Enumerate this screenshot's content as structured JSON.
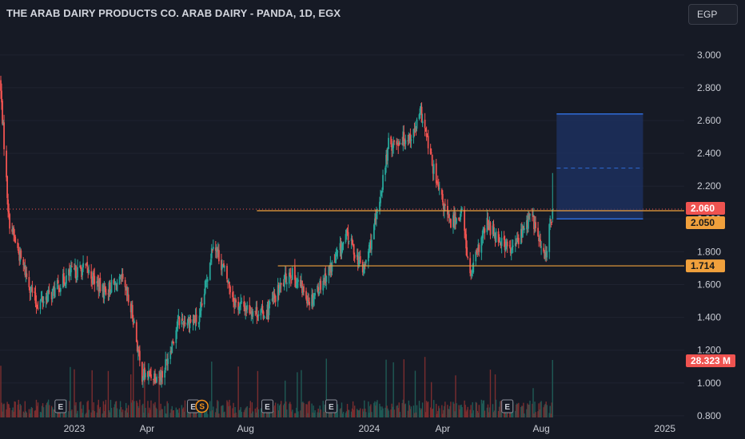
{
  "header": {
    "title": "THE ARAB DAIRY PRODUCTS CO. ARAB DAIRY - PANDA, 1D, EGX",
    "currency_button": "EGP"
  },
  "colors": {
    "up": "#26a69a",
    "down": "#ef5350",
    "level": "#f0a03c",
    "target_zone": "#1e3366",
    "target_border": "#2f6bd6",
    "background": "#161a25"
  },
  "chart_data": {
    "type": "candlestick",
    "symbol": "ARAB DAIRY - PANDA",
    "exchange": "EGX",
    "interval": "1D",
    "currency": "EGP",
    "ylim": [
      0.78,
      3.15
    ],
    "y_ticks": [
      "3.000",
      "2.800",
      "2.600",
      "2.400",
      "2.200",
      "2.000",
      "1.800",
      "1.600",
      "1.400",
      "1.200",
      "1.000",
      "0.800"
    ],
    "x_range": [
      "2022-10-01",
      "2025-01-25"
    ],
    "x_ticks": [
      {
        "label": "2023",
        "date": "2023-01-01"
      },
      {
        "label": "Apr",
        "date": "2023-04-01"
      },
      {
        "label": "Aug",
        "date": "2023-08-01"
      },
      {
        "label": "2024",
        "date": "2024-01-01"
      },
      {
        "label": "Apr",
        "date": "2024-04-01"
      },
      {
        "label": "Aug",
        "date": "2024-08-01"
      },
      {
        "label": "2025",
        "date": "2025-01-01"
      }
    ],
    "price_path": [
      {
        "date": "2022-10-01",
        "price": 2.85
      },
      {
        "date": "2022-10-12",
        "price": 2.0
      },
      {
        "date": "2022-10-25",
        "price": 1.78
      },
      {
        "date": "2022-11-15",
        "price": 1.48
      },
      {
        "date": "2022-12-05",
        "price": 1.55
      },
      {
        "date": "2022-12-25",
        "price": 1.66
      },
      {
        "date": "2023-01-15",
        "price": 1.7
      },
      {
        "date": "2023-02-05",
        "price": 1.56
      },
      {
        "date": "2023-03-01",
        "price": 1.62
      },
      {
        "date": "2023-03-15",
        "price": 1.4
      },
      {
        "date": "2023-03-25",
        "price": 1.05
      },
      {
        "date": "2023-04-20",
        "price": 1.05
      },
      {
        "date": "2023-05-10",
        "price": 1.38
      },
      {
        "date": "2023-06-05",
        "price": 1.38
      },
      {
        "date": "2023-06-22",
        "price": 1.87
      },
      {
        "date": "2023-07-20",
        "price": 1.48
      },
      {
        "date": "2023-08-25",
        "price": 1.42
      },
      {
        "date": "2023-09-25",
        "price": 1.68
      },
      {
        "date": "2023-10-20",
        "price": 1.5
      },
      {
        "date": "2023-11-20",
        "price": 1.75
      },
      {
        "date": "2023-12-05",
        "price": 1.9
      },
      {
        "date": "2023-12-25",
        "price": 1.68
      },
      {
        "date": "2024-01-10",
        "price": 2.0
      },
      {
        "date": "2024-01-25",
        "price": 2.45
      },
      {
        "date": "2024-02-25",
        "price": 2.52
      },
      {
        "date": "2024-03-05",
        "price": 2.65
      },
      {
        "date": "2024-03-25",
        "price": 2.2
      },
      {
        "date": "2024-04-10",
        "price": 1.97
      },
      {
        "date": "2024-04-25",
        "price": 2.04
      },
      {
        "date": "2024-05-05",
        "price": 1.64
      },
      {
        "date": "2024-05-25",
        "price": 1.97
      },
      {
        "date": "2024-06-25",
        "price": 1.8
      },
      {
        "date": "2024-07-20",
        "price": 2.03
      },
      {
        "date": "2024-08-05",
        "price": 1.75
      },
      {
        "date": "2024-08-15",
        "price": 2.05
      }
    ],
    "horizontal_levels": [
      {
        "price": 2.05,
        "start_date": "2023-08-15",
        "label": "2.050"
      },
      {
        "price": 1.714,
        "start_date": "2023-09-10",
        "label": "1.714"
      }
    ],
    "last_price": {
      "price": 2.06,
      "label": "2.060"
    },
    "target_zone": {
      "start_date": "2024-08-20",
      "end_date": "2024-12-05",
      "top": 2.64,
      "middle": 2.31,
      "bottom": 2.0
    },
    "volume": {
      "last_label": "28.323 M"
    },
    "events": [
      {
        "date": "2022-12-15",
        "label": "E"
      },
      {
        "date": "2023-05-28",
        "label": "E"
      },
      {
        "date": "2023-06-08",
        "label": "S"
      },
      {
        "date": "2023-08-28",
        "label": "E"
      },
      {
        "date": "2023-11-15",
        "label": "E"
      },
      {
        "date": "2024-06-20",
        "label": "E"
      }
    ]
  }
}
